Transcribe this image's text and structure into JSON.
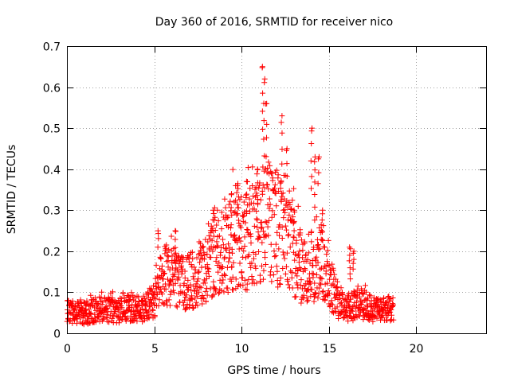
{
  "chart_data": {
    "type": "scatter",
    "title": "Day 360 of 2016, SRMTID for receiver nico",
    "xlabel": "GPS time / hours",
    "ylabel": "SRMTID / TECUs",
    "xlim": [
      0,
      24
    ],
    "ylim": [
      0,
      0.7
    ],
    "xticks": [
      0,
      5,
      10,
      15,
      20
    ],
    "yticks": [
      0,
      0.1,
      0.2,
      0.3,
      0.4,
      0.5,
      0.6,
      0.7
    ],
    "xtick_labels": [
      "0",
      "5",
      "10",
      "15",
      "20"
    ],
    "ytick_labels": [
      "0",
      "0.1",
      "0.2",
      "0.3",
      "0.4",
      "0.5",
      "0.6",
      "0.7"
    ],
    "grid": true,
    "marker": "+",
    "series": [
      {
        "name": "SRMTID",
        "color": "#ff0000",
        "profile": [
          {
            "x": 0.0,
            "y": 0.055
          },
          {
            "x": 0.5,
            "y": 0.05
          },
          {
            "x": 1.0,
            "y": 0.048
          },
          {
            "x": 1.5,
            "y": 0.055
          },
          {
            "x": 2.0,
            "y": 0.06
          },
          {
            "x": 2.5,
            "y": 0.058
          },
          {
            "x": 3.0,
            "y": 0.055
          },
          {
            "x": 3.5,
            "y": 0.06
          },
          {
            "x": 4.0,
            "y": 0.058
          },
          {
            "x": 4.5,
            "y": 0.06
          },
          {
            "x": 5.0,
            "y": 0.085
          },
          {
            "x": 5.5,
            "y": 0.14
          },
          {
            "x": 6.0,
            "y": 0.14
          },
          {
            "x": 6.5,
            "y": 0.12
          },
          {
            "x": 7.0,
            "y": 0.13
          },
          {
            "x": 7.5,
            "y": 0.14
          },
          {
            "x": 8.0,
            "y": 0.17
          },
          {
            "x": 8.5,
            "y": 0.2
          },
          {
            "x": 9.0,
            "y": 0.21
          },
          {
            "x": 9.5,
            "y": 0.23
          },
          {
            "x": 10.0,
            "y": 0.22
          },
          {
            "x": 10.5,
            "y": 0.23
          },
          {
            "x": 11.0,
            "y": 0.24
          },
          {
            "x": 11.5,
            "y": 0.28
          },
          {
            "x": 12.0,
            "y": 0.25
          },
          {
            "x": 12.5,
            "y": 0.25
          },
          {
            "x": 13.0,
            "y": 0.2
          },
          {
            "x": 13.5,
            "y": 0.15
          },
          {
            "x": 14.0,
            "y": 0.16
          },
          {
            "x": 14.5,
            "y": 0.18
          },
          {
            "x": 15.0,
            "y": 0.13
          },
          {
            "x": 15.5,
            "y": 0.08
          },
          {
            "x": 16.0,
            "y": 0.06
          },
          {
            "x": 16.5,
            "y": 0.07
          },
          {
            "x": 17.0,
            "y": 0.07
          },
          {
            "x": 17.5,
            "y": 0.06
          },
          {
            "x": 18.0,
            "y": 0.055
          },
          {
            "x": 18.5,
            "y": 0.06
          },
          {
            "x": 18.7,
            "y": 0.055
          }
        ],
        "peaks": [
          {
            "x": 5.2,
            "y": 0.25
          },
          {
            "x": 6.2,
            "y": 0.25
          },
          {
            "x": 8.4,
            "y": 0.3
          },
          {
            "x": 9.4,
            "y": 0.34
          },
          {
            "x": 9.8,
            "y": 0.36
          },
          {
            "x": 10.3,
            "y": 0.37
          },
          {
            "x": 10.9,
            "y": 0.4
          },
          {
            "x": 11.2,
            "y": 0.65
          },
          {
            "x": 11.3,
            "y": 0.62
          },
          {
            "x": 11.4,
            "y": 0.56
          },
          {
            "x": 12.3,
            "y": 0.53
          },
          {
            "x": 12.6,
            "y": 0.45
          },
          {
            "x": 13.0,
            "y": 0.3
          },
          {
            "x": 14.0,
            "y": 0.5
          },
          {
            "x": 14.2,
            "y": 0.43
          },
          {
            "x": 14.4,
            "y": 0.43
          },
          {
            "x": 14.6,
            "y": 0.3
          },
          {
            "x": 16.2,
            "y": 0.21
          },
          {
            "x": 16.4,
            "y": 0.2
          }
        ],
        "x_range": [
          0.0,
          18.7
        ],
        "approx_points": 1400
      }
    ]
  }
}
